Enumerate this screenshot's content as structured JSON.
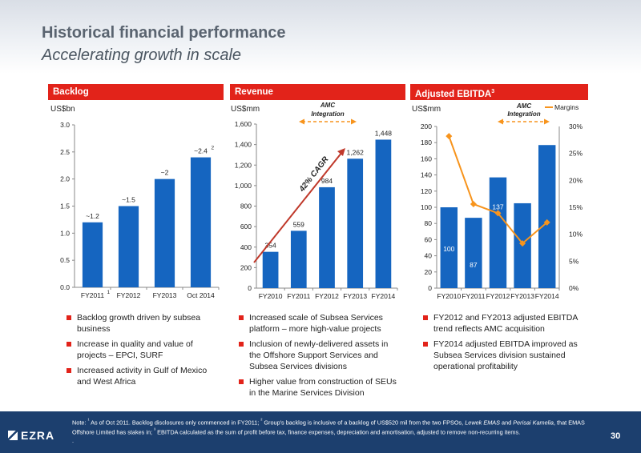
{
  "page": {
    "title": "Historical financial performance",
    "subtitle": "Accelerating growth in scale",
    "page_number": "30",
    "brand": "EZRA",
    "note_parts": [
      "Note: ",
      "¹",
      " As of Oct 2011. Backlog disclosures only commenced in FY2011; ",
      "²",
      " Group's backlog is inclusive of a backlog of US$520 mil from the two FPSOs, ",
      "Lewek EMAS",
      " and ",
      "Perisai Kamelia",
      ", that EMAS Offshore Limited has stakes in; ",
      "³",
      " EBITDA calculated as the sum of profit before tax, finance expenses, depreciation and amortisation, adjusted to remove non-recurring items.",
      ".",
      ""
    ]
  },
  "backlog": {
    "header": "Backlog",
    "unit": "US$bn",
    "bullets": [
      "Backlog growth driven by subsea business",
      "Increase in quality and value of projects – EPCI, SURF",
      "Increased activity in Gulf of Mexico and West Africa"
    ]
  },
  "revenue": {
    "header": "Revenue",
    "unit": "US$mm",
    "amc_label": "AMC Integration",
    "cagr_label": "42% CAGR",
    "bullets": [
      "Increased scale of Subsea Services platform – more high-value projects",
      "Inclusion of newly-delivered assets in the Offshore Support Services and Subsea Services divisions",
      "Higher value from construction of SEUs in the Marine Services Division"
    ]
  },
  "ebitda": {
    "header": "Adjusted EBITDA",
    "header_sup": "3",
    "unit": "US$mm",
    "amc_label": "AMC Integration",
    "legend_margins": "Margins",
    "bullets": [
      "FY2012 and FY2013 adjusted EBITDA trend reflects AMC acquisition",
      "FY2014 adjusted EBITDA improved as Subsea Services division sustained operational profitability"
    ]
  },
  "colors": {
    "bar": "#1565c0",
    "accent": "#e2231a",
    "margin_line": "#f7941d",
    "arrow": "#c0392b",
    "amc": "#f7941d",
    "footer": "#1c3f6e"
  },
  "chart_data": [
    {
      "type": "bar",
      "name": "Backlog",
      "categories": [
        "FY2011",
        "FY2012",
        "FY2013",
        "Oct 2014"
      ],
      "category_sups": [
        "1",
        "",
        "",
        ""
      ],
      "values": [
        1.2,
        1.5,
        2.0,
        2.4
      ],
      "data_labels": [
        "~1.2",
        "~1.5",
        "~2",
        "~2.4"
      ],
      "data_label_sups": [
        "",
        "",
        "",
        "2"
      ],
      "ylabel": "US$bn",
      "ylim": [
        0,
        3.0
      ],
      "yticks": [
        "0.0",
        "0.5",
        "1.0",
        "1.5",
        "2.0",
        "2.5",
        "3.0"
      ]
    },
    {
      "type": "bar",
      "name": "Revenue",
      "categories": [
        "FY2010",
        "FY2011",
        "FY2012",
        "FY2013",
        "FY2014"
      ],
      "values": [
        354,
        559,
        984,
        1262,
        1448
      ],
      "data_labels": [
        "354",
        "559",
        "984",
        "1,262",
        "1,448"
      ],
      "ylabel": "US$mm",
      "ylim": [
        0,
        1600
      ],
      "yticks": [
        "0",
        "200",
        "400",
        "600",
        "800",
        "1,000",
        "1,200",
        "1,400",
        "1,600"
      ],
      "annotations": [
        "AMC Integration",
        "42% CAGR"
      ]
    },
    {
      "type": "bar",
      "name": "Adjusted EBITDA",
      "categories": [
        "FY2010",
        "FY2011",
        "FY2012",
        "FY2013",
        "FY2014"
      ],
      "values": [
        100,
        87,
        137,
        105,
        177
      ],
      "data_labels": [
        "100",
        "87",
        "137",
        "105",
        "177"
      ],
      "ylabel": "US$mm",
      "ylim": [
        0,
        200
      ],
      "yticks": [
        "0",
        "20",
        "40",
        "60",
        "80",
        "100",
        "120",
        "140",
        "160",
        "180",
        "200"
      ],
      "secondary": {
        "type": "line",
        "name": "Margins",
        "values_pct": [
          28.2,
          15.6,
          13.9,
          8.3,
          12.2
        ],
        "ylim": [
          0,
          30
        ],
        "yticks": [
          "0%",
          "5%",
          "10%",
          "15%",
          "20%",
          "25%",
          "30%"
        ]
      },
      "annotations": [
        "AMC Integration"
      ]
    }
  ]
}
